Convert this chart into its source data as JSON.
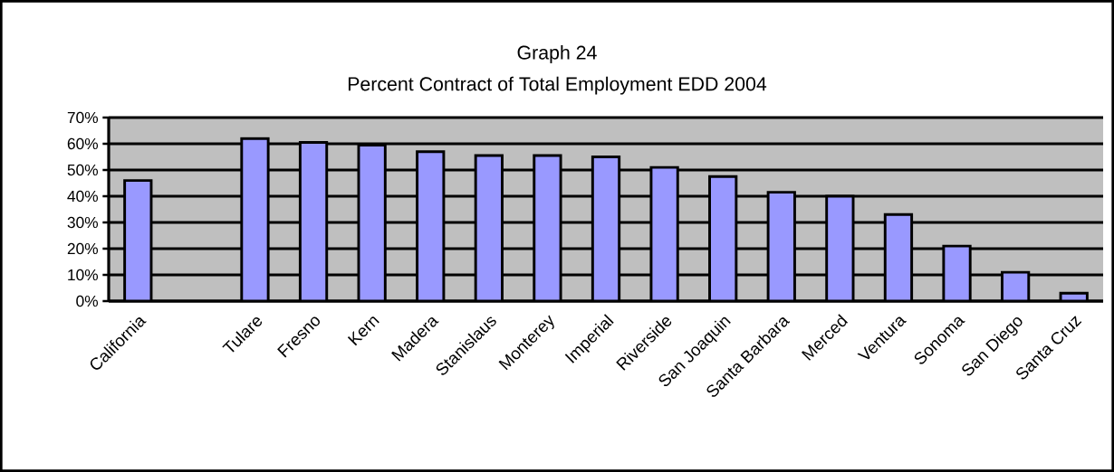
{
  "chart_data": {
    "type": "bar",
    "title": "Graph 24",
    "subtitle": "Percent Contract of Total Employment EDD 2004",
    "categories": [
      "California",
      null,
      "Tulare",
      "Fresno",
      "Kern",
      "Madera",
      "Stanislaus",
      "Monterey",
      "Imperial",
      "Riverside",
      "San Joaquin",
      "Santa Barbara",
      "Merced",
      "Ventura",
      "Sonoma",
      "San Diego",
      "Santa Cruz"
    ],
    "values": [
      46,
      null,
      62,
      60.5,
      59.5,
      57,
      55.5,
      55.5,
      55,
      51,
      47.5,
      41.5,
      40,
      33,
      21,
      11,
      3
    ],
    "color": "#9999ff",
    "ylim": [
      0,
      70
    ],
    "yticks": [
      {
        "value": 0,
        "label": "0%"
      },
      {
        "value": 10,
        "label": "10%"
      },
      {
        "value": 20,
        "label": "20%"
      },
      {
        "value": 30,
        "label": "30%"
      },
      {
        "value": 40,
        "label": "40%"
      },
      {
        "value": 50,
        "label": "50%"
      },
      {
        "value": 60,
        "label": "60%"
      },
      {
        "value": 70,
        "label": "70%"
      }
    ],
    "grid": "y"
  }
}
